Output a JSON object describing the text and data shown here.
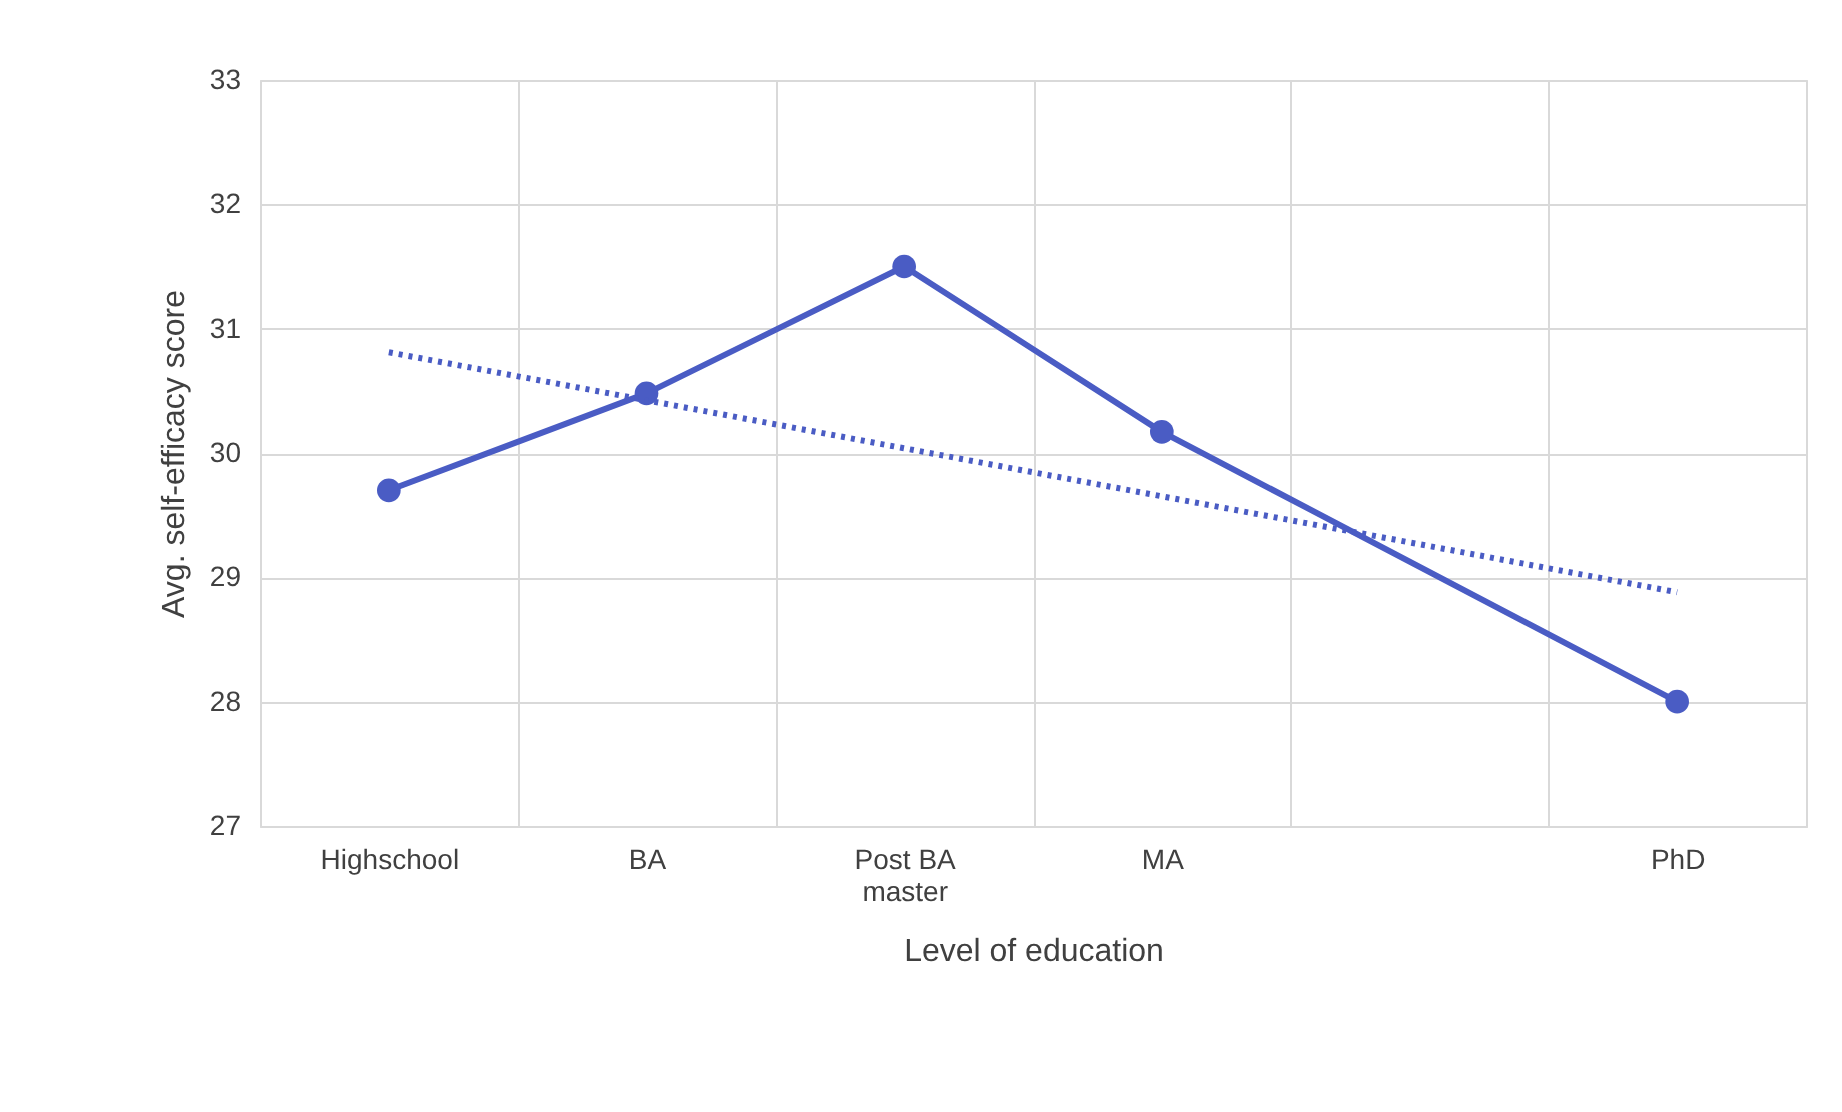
{
  "chart_data": {
    "type": "line",
    "xlabel": "Level of education",
    "ylabel": "Avg. self-efficacy score",
    "categories": [
      "Highschool",
      "BA",
      "Post BA master",
      "MA",
      null,
      "PhD"
    ],
    "series": [
      {
        "color": "#4a5cc4",
        "marker": "circle",
        "line_style": "solid",
        "values": [
          29.7,
          30.48,
          31.5,
          30.17,
          null,
          28.0
        ]
      },
      {
        "color": "#4a5cc4",
        "marker": "none",
        "line_style": "dotted",
        "values": [
          30.81,
          null,
          null,
          null,
          null,
          28.88
        ]
      }
    ],
    "ylim": [
      27,
      33
    ],
    "yticks": [
      27,
      28,
      29,
      30,
      31,
      32,
      33
    ],
    "grid": true
  }
}
